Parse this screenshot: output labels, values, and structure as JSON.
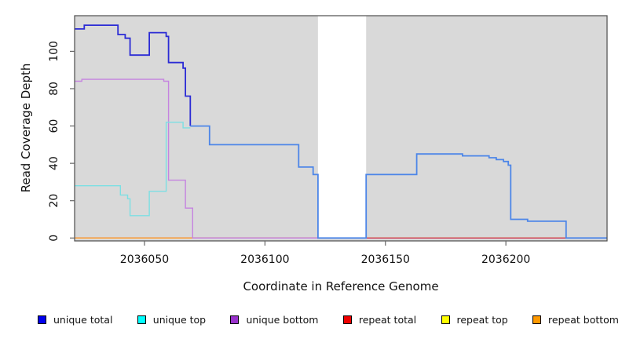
{
  "chart_data": {
    "type": "line",
    "subtype": "step-after",
    "title": "",
    "xlabel": "Coordinate in Reference Genome",
    "ylabel": "Read Coverage Depth",
    "xlim": [
      2036021,
      2036242
    ],
    "ylim": [
      0,
      119
    ],
    "x_ticks": [
      2036050,
      2036100,
      2036150,
      2036200
    ],
    "y_ticks": [
      0,
      20,
      40,
      60,
      80,
      100
    ],
    "grid": false,
    "plot_bg_color": "#d9d9d9",
    "masked_region": {
      "from": 2036122,
      "to": 2036142,
      "color": "#ffffff"
    },
    "legend_position": "bottom",
    "series": [
      {
        "name": "repeat top",
        "line_color": "#e8d800",
        "points": [
          [
            2036021,
            0
          ],
          [
            2036242,
            0
          ]
        ]
      },
      {
        "name": "repeat total",
        "line_color": "#cc3355",
        "points": [
          [
            2036021,
            0
          ],
          [
            2036242,
            0
          ]
        ]
      },
      {
        "name": "repeat bottom",
        "line_color": "#ff9f2e",
        "points": [
          [
            2036021,
            0
          ],
          [
            2036070,
            0
          ]
        ]
      },
      {
        "name": "unique bottom",
        "line_color": "#c583e0",
        "points": [
          [
            2036021,
            84
          ],
          [
            2036024,
            85
          ],
          [
            2036058,
            84
          ],
          [
            2036060,
            31
          ],
          [
            2036067,
            16
          ],
          [
            2036070,
            0
          ],
          [
            2036122,
            0
          ]
        ]
      },
      {
        "name": "unique top",
        "line_color": "#7cdfe3",
        "points": [
          [
            2036021,
            28
          ],
          [
            2036040,
            23
          ],
          [
            2036043,
            21
          ],
          [
            2036044,
            12
          ],
          [
            2036052,
            25
          ],
          [
            2036059,
            62
          ],
          [
            2036066,
            59
          ],
          [
            2036069,
            59
          ]
        ]
      },
      {
        "name": "unique total",
        "line_color": "#2b2bd5",
        "color_after_split": "#4d86e8",
        "split_at": 2036069,
        "points": [
          [
            2036021,
            112
          ],
          [
            2036025,
            114
          ],
          [
            2036039,
            109
          ],
          [
            2036042,
            107
          ],
          [
            2036044,
            98
          ],
          [
            2036052,
            110
          ],
          [
            2036059,
            108
          ],
          [
            2036060,
            94
          ],
          [
            2036066,
            91
          ],
          [
            2036067,
            76
          ],
          [
            2036069,
            60
          ],
          [
            2036077,
            50
          ],
          [
            2036114,
            38
          ],
          [
            2036120,
            34
          ],
          [
            2036122,
            0
          ],
          [
            2036142,
            34
          ],
          [
            2036163,
            45
          ],
          [
            2036182,
            44
          ],
          [
            2036193,
            43
          ],
          [
            2036196,
            42
          ],
          [
            2036199,
            41
          ],
          [
            2036201,
            39
          ],
          [
            2036202,
            10
          ],
          [
            2036209,
            9
          ],
          [
            2036225,
            0
          ],
          [
            2036242,
            0
          ]
        ]
      }
    ]
  },
  "legend": {
    "items": [
      {
        "label": "unique total",
        "color": "#0000ee"
      },
      {
        "label": "unique top",
        "color": "#00ffff"
      },
      {
        "label": "unique bottom",
        "color": "#9932cc"
      },
      {
        "label": "repeat total",
        "color": "#ee0000"
      },
      {
        "label": "repeat top",
        "color": "#ffff00"
      },
      {
        "label": "repeat bottom",
        "color": "#ff9900"
      }
    ]
  }
}
